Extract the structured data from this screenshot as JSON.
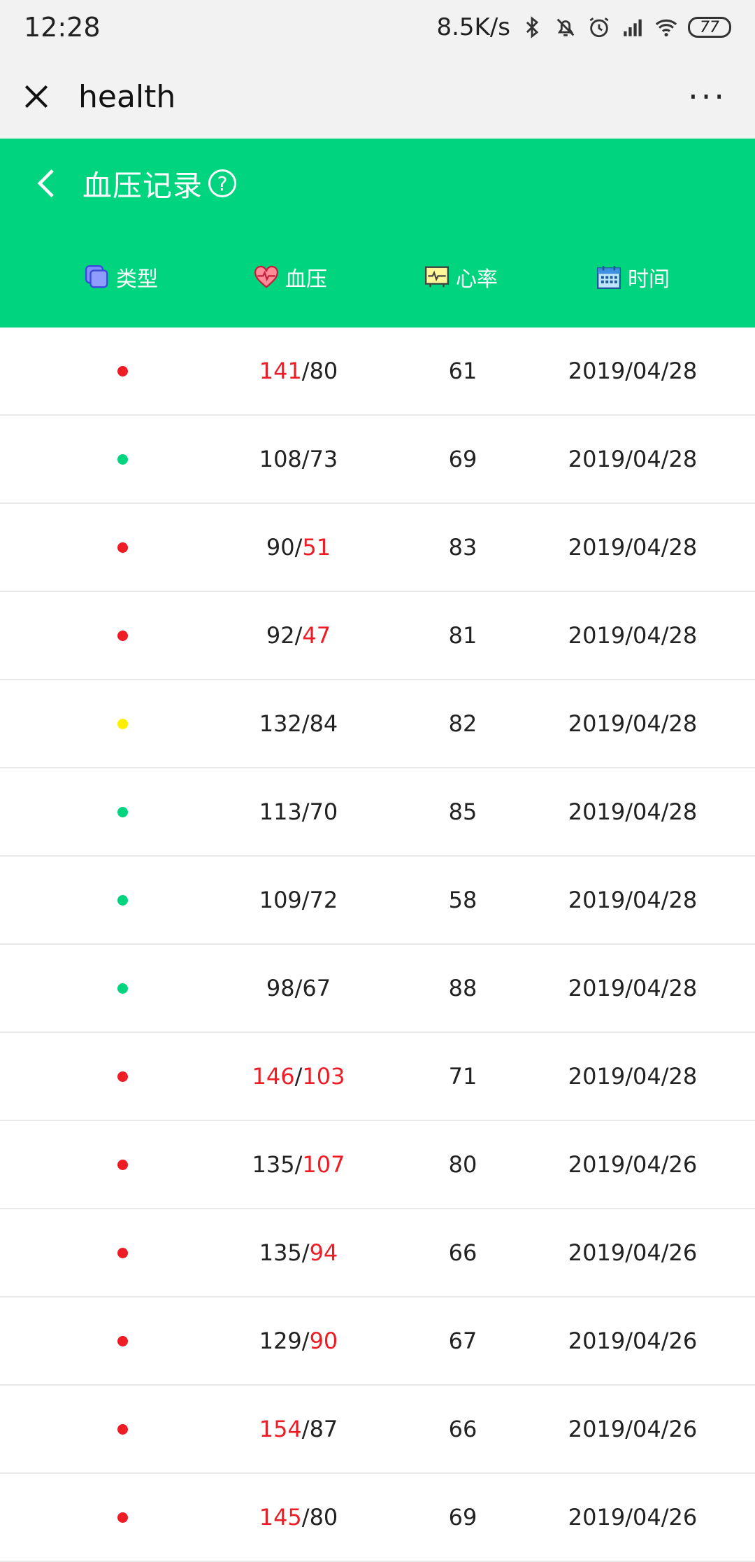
{
  "status_bar": {
    "time": "12:28",
    "net_speed": "8.5K/s",
    "battery": "77",
    "icons": [
      "bluetooth-icon",
      "bell-off-icon",
      "alarm-icon",
      "signal-icon",
      "wifi-icon",
      "battery-icon"
    ]
  },
  "title_bar": {
    "title": "health",
    "more": "···"
  },
  "header": {
    "title": "血压记录",
    "help": "?",
    "columns": [
      {
        "label": "类型",
        "icon": "layers-icon"
      },
      {
        "label": "血压",
        "icon": "heart-pulse-icon"
      },
      {
        "label": "心率",
        "icon": "monitor-icon"
      },
      {
        "label": "时间",
        "icon": "calendar-icon"
      }
    ]
  },
  "colors": {
    "accent": "#00d47f",
    "high": "#ee1c25",
    "normal": "#00d47f",
    "warning": "#ffee00"
  },
  "records": [
    {
      "status": "high",
      "sys": "141",
      "dia": "80",
      "sys_high": true,
      "dia_high": false,
      "hr": "61",
      "date": "2019/04/28"
    },
    {
      "status": "normal",
      "sys": "108",
      "dia": "73",
      "sys_high": false,
      "dia_high": false,
      "hr": "69",
      "date": "2019/04/28"
    },
    {
      "status": "high",
      "sys": "90",
      "dia": "51",
      "sys_high": false,
      "dia_high": true,
      "hr": "83",
      "date": "2019/04/28"
    },
    {
      "status": "high",
      "sys": "92",
      "dia": "47",
      "sys_high": false,
      "dia_high": true,
      "hr": "81",
      "date": "2019/04/28"
    },
    {
      "status": "warning",
      "sys": "132",
      "dia": "84",
      "sys_high": false,
      "dia_high": false,
      "hr": "82",
      "date": "2019/04/28"
    },
    {
      "status": "normal",
      "sys": "113",
      "dia": "70",
      "sys_high": false,
      "dia_high": false,
      "hr": "85",
      "date": "2019/04/28"
    },
    {
      "status": "normal",
      "sys": "109",
      "dia": "72",
      "sys_high": false,
      "dia_high": false,
      "hr": "58",
      "date": "2019/04/28"
    },
    {
      "status": "normal",
      "sys": "98",
      "dia": "67",
      "sys_high": false,
      "dia_high": false,
      "hr": "88",
      "date": "2019/04/28"
    },
    {
      "status": "high",
      "sys": "146",
      "dia": "103",
      "sys_high": true,
      "dia_high": true,
      "hr": "71",
      "date": "2019/04/28"
    },
    {
      "status": "high",
      "sys": "135",
      "dia": "107",
      "sys_high": false,
      "dia_high": true,
      "hr": "80",
      "date": "2019/04/26"
    },
    {
      "status": "high",
      "sys": "135",
      "dia": "94",
      "sys_high": false,
      "dia_high": true,
      "hr": "66",
      "date": "2019/04/26"
    },
    {
      "status": "high",
      "sys": "129",
      "dia": "90",
      "sys_high": false,
      "dia_high": true,
      "hr": "67",
      "date": "2019/04/26"
    },
    {
      "status": "high",
      "sys": "154",
      "dia": "87",
      "sys_high": true,
      "dia_high": false,
      "hr": "66",
      "date": "2019/04/26"
    },
    {
      "status": "high",
      "sys": "145",
      "dia": "80",
      "sys_high": true,
      "dia_high": false,
      "hr": "69",
      "date": "2019/04/26"
    }
  ]
}
